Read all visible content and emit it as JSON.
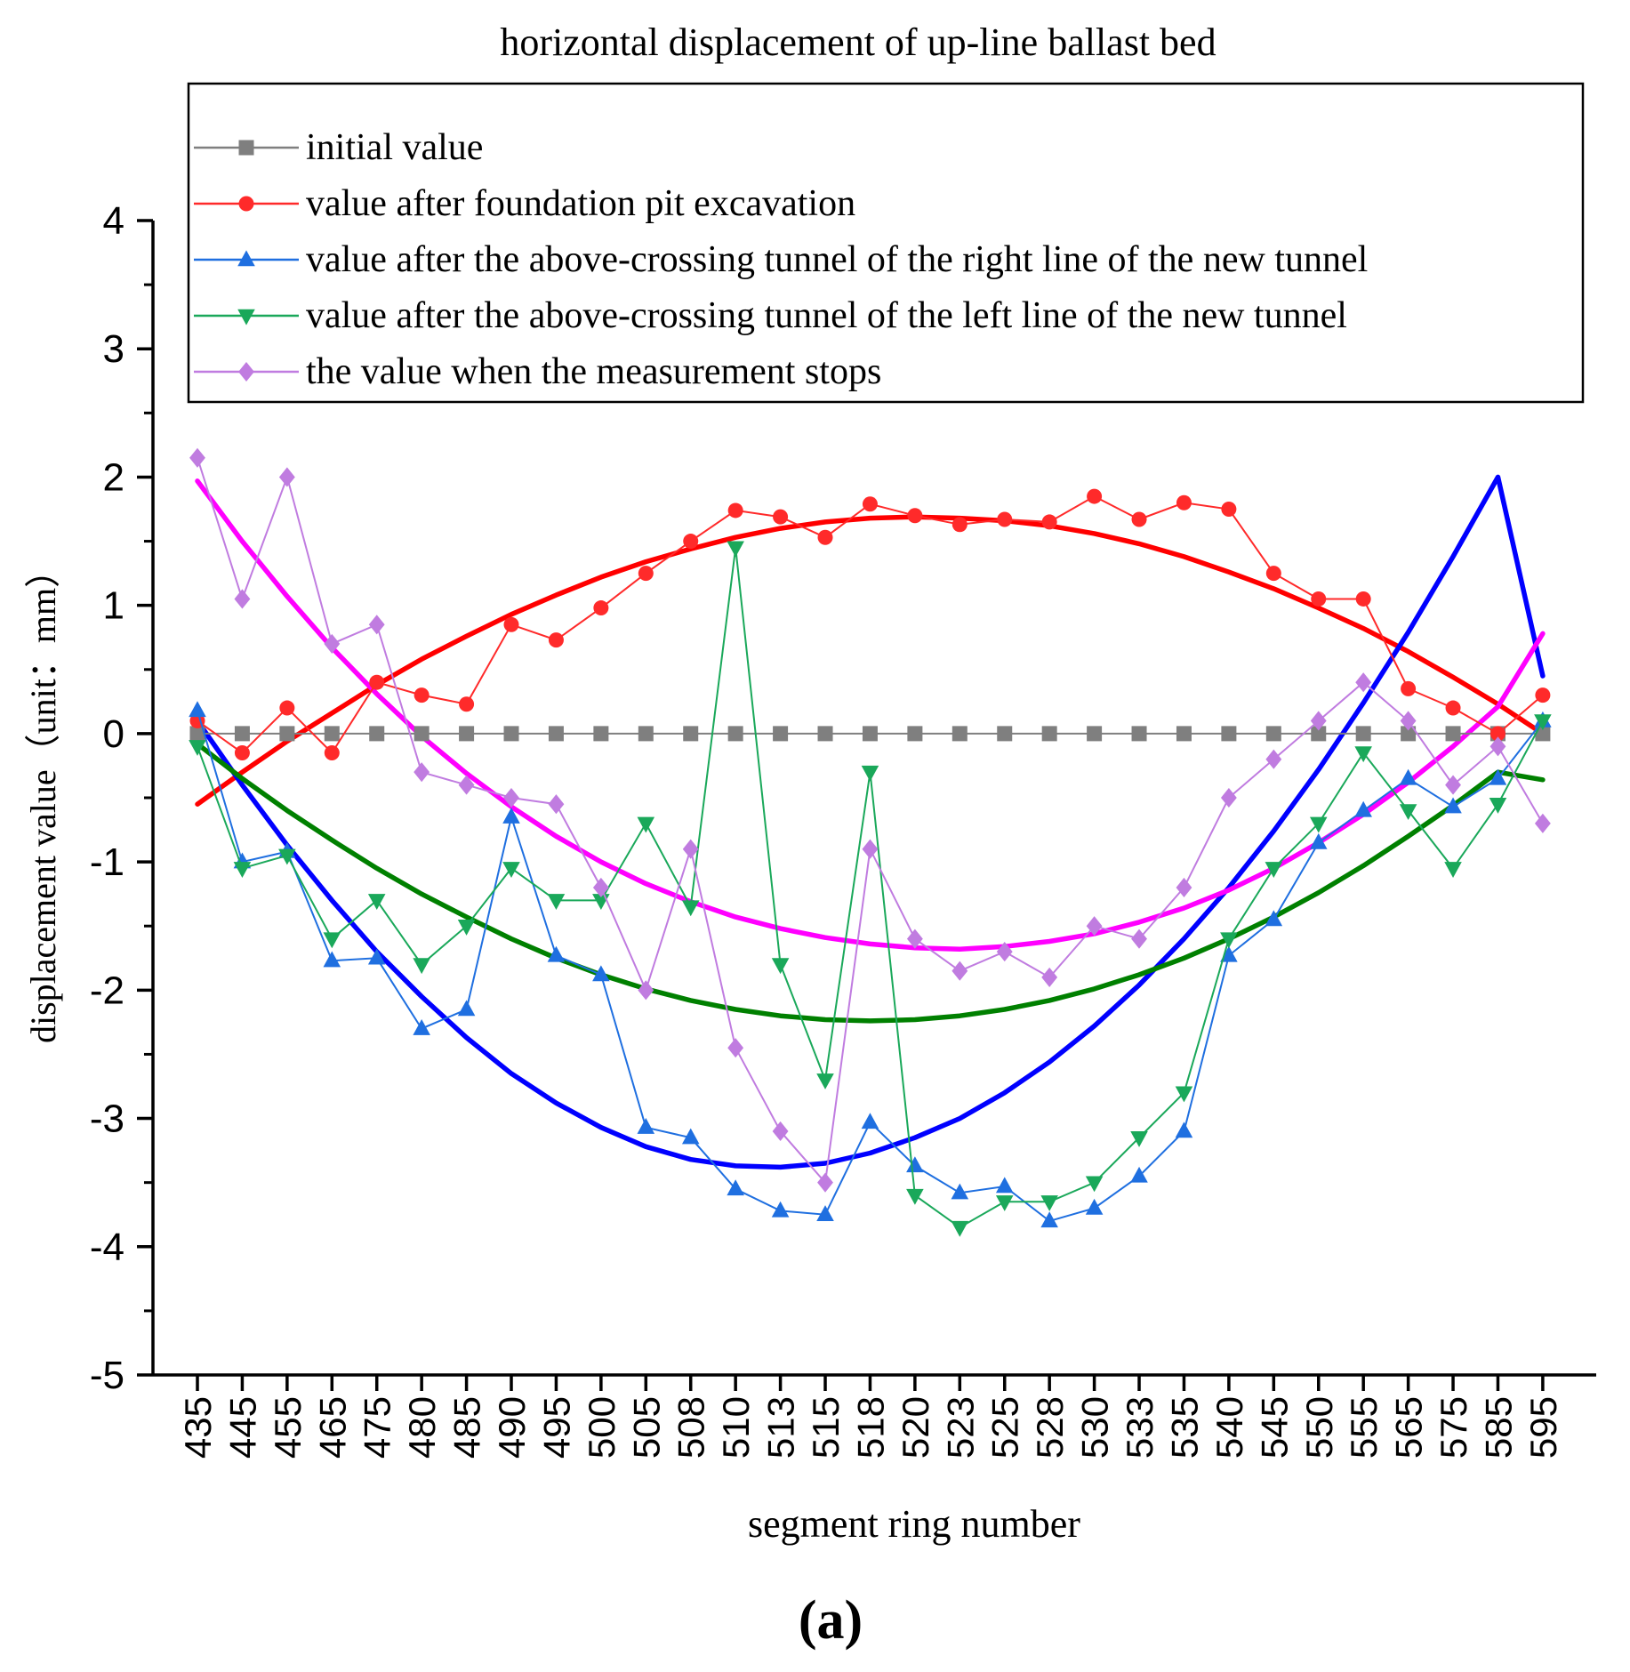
{
  "chart_data": {
    "type": "line",
    "title": "horizontal displacement of up-line ballast bed",
    "xlabel": "segment ring number",
    "ylabel": "displacement value（unit：mm）",
    "panel_label": "(a)",
    "ylim": [
      -5,
      4
    ],
    "yticks": [
      "-5",
      "-4",
      "-3",
      "-2",
      "-1",
      "0",
      "1",
      "2",
      "3",
      "4"
    ],
    "grid": false,
    "legend_position": "top",
    "categories": [
      "435",
      "445",
      "455",
      "465",
      "475",
      "480",
      "485",
      "490",
      "495",
      "500",
      "505",
      "508",
      "510",
      "513",
      "515",
      "518",
      "520",
      "523",
      "525",
      "528",
      "530",
      "533",
      "535",
      "540",
      "545",
      "550",
      "555",
      "565",
      "575",
      "585",
      "595"
    ],
    "series": [
      {
        "name": "initial value",
        "color": "#7f7f7f",
        "marker": "square",
        "values": [
          0,
          0,
          0,
          0,
          0,
          0,
          0,
          0,
          0,
          0,
          0,
          0,
          0,
          0,
          0,
          0,
          0,
          0,
          0,
          0,
          0,
          0,
          0,
          0,
          0,
          0,
          0,
          0,
          0,
          0,
          0
        ]
      },
      {
        "name": "value after foundation pit excavation",
        "color": "#ff2a2a",
        "fit_color": "#ff0000",
        "marker": "circle",
        "values": [
          0.1,
          -0.15,
          0.2,
          -0.15,
          0.4,
          0.3,
          0.23,
          0.85,
          0.73,
          0.98,
          1.25,
          1.5,
          1.74,
          1.69,
          1.53,
          1.79,
          1.7,
          1.63,
          1.67,
          1.65,
          1.85,
          1.67,
          1.8,
          1.75,
          1.25,
          1.05,
          1.05,
          0.35,
          0.2,
          0.0,
          0.3
        ],
        "fit": [
          -0.55,
          -0.3,
          -0.06,
          0.16,
          0.38,
          0.58,
          0.76,
          0.93,
          1.08,
          1.22,
          1.34,
          1.44,
          1.53,
          1.6,
          1.65,
          1.68,
          1.69,
          1.68,
          1.66,
          1.62,
          1.56,
          1.48,
          1.38,
          1.26,
          1.13,
          0.98,
          0.82,
          0.64,
          0.44,
          0.23,
          0.0
        ]
      },
      {
        "name": "value after the above-crossing tunnel of the right line of the new tunnel",
        "color": "#1f6fe0",
        "fit_color": "#0000ff",
        "marker": "triangle-up",
        "values": [
          0.18,
          -1.0,
          -0.92,
          -1.77,
          -1.75,
          -2.3,
          -2.15,
          -0.65,
          -1.73,
          -1.88,
          -3.07,
          -3.15,
          -3.55,
          -3.72,
          -3.75,
          -3.03,
          -3.37,
          -3.58,
          -3.53,
          -3.8,
          -3.7,
          -3.45,
          -3.1,
          -1.73,
          -1.45,
          -0.85,
          -0.6,
          -0.35,
          -0.57,
          -0.35,
          0.1
        ],
        "fit": [
          0.1,
          -0.4,
          -0.87,
          -1.3,
          -1.7,
          -2.05,
          -2.37,
          -2.65,
          -2.88,
          -3.07,
          -3.22,
          -3.32,
          -3.37,
          -3.38,
          -3.35,
          -3.27,
          -3.15,
          -3.0,
          -2.8,
          -2.56,
          -2.28,
          -1.96,
          -1.6,
          -1.2,
          -0.76,
          -0.28,
          0.24,
          0.79,
          1.38,
          2.0,
          0.45
        ]
      },
      {
        "name": "value after the above-crossing tunnel of the left line of the new tunnel",
        "color": "#1aa85a",
        "fit_color": "#008000",
        "marker": "triangle-down",
        "values": [
          -0.1,
          -1.05,
          -0.95,
          -1.6,
          -1.3,
          -1.8,
          -1.5,
          -1.05,
          -1.3,
          -1.3,
          -0.7,
          -1.35,
          1.45,
          -1.8,
          -2.7,
          -0.3,
          -3.6,
          -3.85,
          -3.65,
          -3.65,
          -3.5,
          -3.15,
          -2.8,
          -1.6,
          -1.05,
          -0.7,
          -0.15,
          -0.6,
          -1.05,
          -0.55,
          0.1
        ],
        "fit": [
          -0.08,
          -0.35,
          -0.6,
          -0.83,
          -1.05,
          -1.25,
          -1.43,
          -1.6,
          -1.75,
          -1.88,
          -1.99,
          -2.08,
          -2.15,
          -2.2,
          -2.23,
          -2.24,
          -2.23,
          -2.2,
          -2.15,
          -2.08,
          -1.99,
          -1.88,
          -1.75,
          -1.6,
          -1.43,
          -1.24,
          -1.03,
          -0.8,
          -0.56,
          -0.3,
          -0.36
        ]
      },
      {
        "name": "the value when the measurement stops",
        "color": "#c07ce0",
        "fit_color": "#ff00ff",
        "marker": "diamond",
        "values": [
          2.15,
          1.05,
          2.0,
          0.7,
          0.85,
          -0.3,
          -0.4,
          -0.5,
          -0.55,
          -1.2,
          -2.0,
          -0.9,
          -2.45,
          -3.1,
          -3.5,
          -0.9,
          -1.6,
          -1.85,
          -1.7,
          -1.9,
          -1.5,
          -1.6,
          -1.2,
          -0.5,
          -0.2,
          0.1,
          0.4,
          0.1,
          -0.4,
          -0.1,
          -0.7
        ],
        "fit": [
          1.97,
          1.5,
          1.07,
          0.67,
          0.31,
          -0.02,
          -0.31,
          -0.57,
          -0.8,
          -1.0,
          -1.17,
          -1.31,
          -1.43,
          -1.52,
          -1.59,
          -1.64,
          -1.67,
          -1.68,
          -1.66,
          -1.62,
          -1.56,
          -1.47,
          -1.36,
          -1.22,
          -1.05,
          -0.85,
          -0.63,
          -0.38,
          -0.1,
          0.21,
          0.78
        ]
      }
    ]
  }
}
